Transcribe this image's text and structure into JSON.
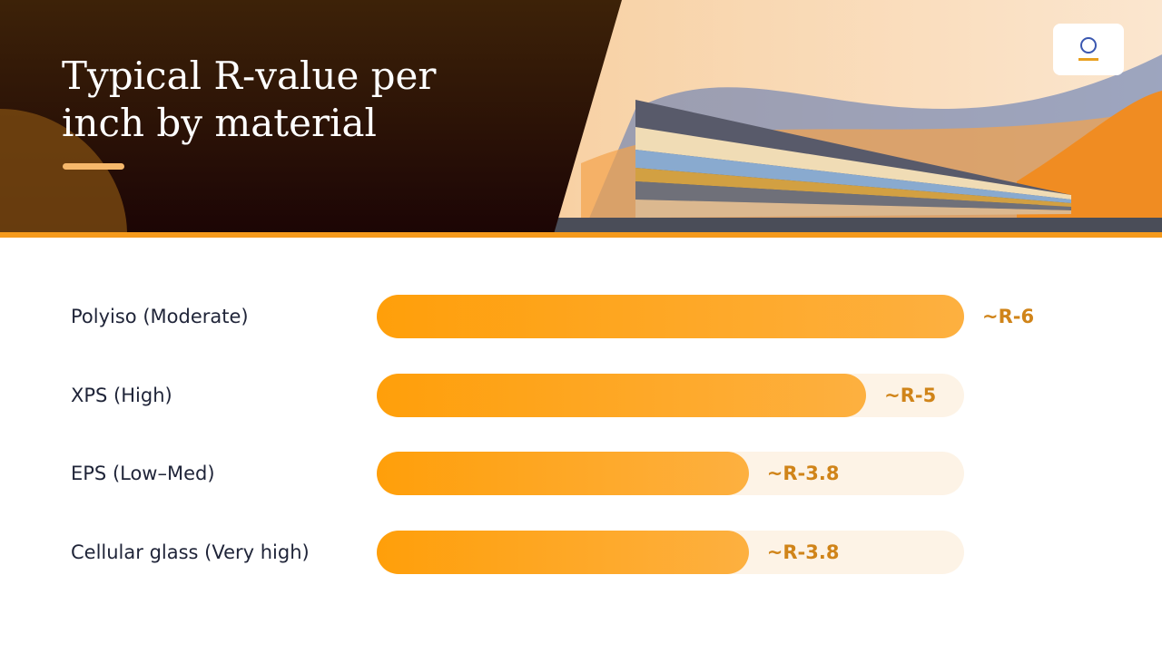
{
  "chart_data": {
    "type": "bar",
    "orientation": "horizontal",
    "title": "Typical R-value per inch by material",
    "categories": [
      "Polyiso (Moderate)",
      "XPS (High)",
      "EPS (Low–Med)",
      "Cellular glass (Very high)"
    ],
    "values": [
      6,
      5,
      3.8,
      3.8
    ],
    "value_labels": [
      "~R-6",
      "~R-5",
      "~R-3.8",
      "~R-3.8"
    ],
    "color": "#ff9f0a",
    "xlim": [
      0,
      6
    ]
  }
}
